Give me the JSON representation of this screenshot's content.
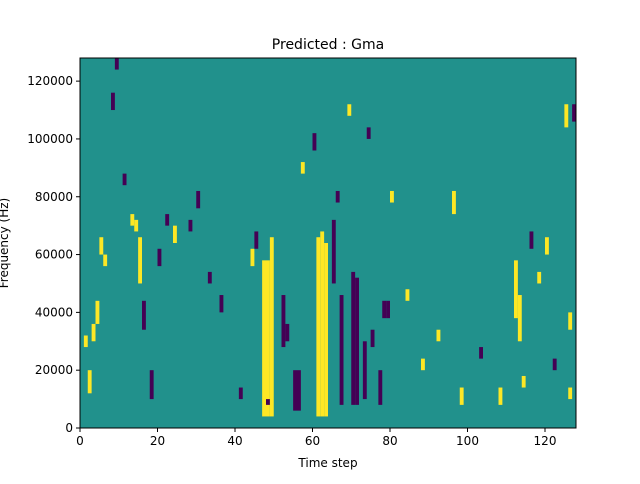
{
  "chart_data": {
    "type": "heatmap",
    "title": "Predicted : Gma",
    "xlabel": "Time step",
    "ylabel": "Frequency (Hz)",
    "xlim": [
      0,
      128
    ],
    "ylim": [
      0,
      128000
    ],
    "x_ticks": [
      0,
      20,
      40,
      60,
      80,
      100,
      120
    ],
    "y_ticks": [
      0,
      20000,
      40000,
      60000,
      80000,
      100000,
      120000
    ],
    "grid": false,
    "legend": "none",
    "colors": {
      "background": "#21918c",
      "high": "#fde725",
      "low": "#440154"
    },
    "value_levels": {
      "background": 0,
      "high": 1,
      "low": -1
    },
    "cells": [
      {
        "t": 47,
        "f0": 4000,
        "f1": 58000,
        "v": 1
      },
      {
        "t": 48,
        "f0": 4000,
        "f1": 58000,
        "v": 1
      },
      {
        "t": 49,
        "f0": 4000,
        "f1": 66000,
        "v": 1
      },
      {
        "t": 48,
        "f0": 8000,
        "f1": 10000,
        "v": -1
      },
      {
        "t": 61,
        "f0": 4000,
        "f1": 66000,
        "v": 1
      },
      {
        "t": 62,
        "f0": 4000,
        "f1": 68000,
        "v": 1
      },
      {
        "t": 63,
        "f0": 4000,
        "f1": 64000,
        "v": 1
      },
      {
        "t": 55,
        "f0": 6000,
        "f1": 20000,
        "v": -1
      },
      {
        "t": 56,
        "f0": 6000,
        "f1": 20000,
        "v": -1
      },
      {
        "t": 52,
        "f0": 28000,
        "f1": 46000,
        "v": -1
      },
      {
        "t": 53,
        "f0": 30000,
        "f1": 36000,
        "v": -1
      },
      {
        "t": 70,
        "f0": 8000,
        "f1": 54000,
        "v": -1
      },
      {
        "t": 71,
        "f0": 8000,
        "f1": 52000,
        "v": -1
      },
      {
        "t": 67,
        "f0": 8000,
        "f1": 46000,
        "v": -1
      },
      {
        "t": 65,
        "f0": 50000,
        "f1": 72000,
        "v": -1
      },
      {
        "t": 77,
        "f0": 8000,
        "f1": 20000,
        "v": -1
      },
      {
        "t": 78,
        "f0": 38000,
        "f1": 44000,
        "v": -1
      },
      {
        "t": 79,
        "f0": 38000,
        "f1": 44000,
        "v": -1
      },
      {
        "t": 75,
        "f0": 28000,
        "f1": 34000,
        "v": -1
      },
      {
        "t": 73,
        "f0": 10000,
        "f1": 30000,
        "v": -1
      },
      {
        "t": 1,
        "f0": 28000,
        "f1": 32000,
        "v": 1
      },
      {
        "t": 2,
        "f0": 12000,
        "f1": 20000,
        "v": 1
      },
      {
        "t": 3,
        "f0": 30000,
        "f1": 36000,
        "v": 1
      },
      {
        "t": 5,
        "f0": 60000,
        "f1": 66000,
        "v": 1
      },
      {
        "t": 6,
        "f0": 56000,
        "f1": 60000,
        "v": 1
      },
      {
        "t": 4,
        "f0": 36000,
        "f1": 44000,
        "v": 1
      },
      {
        "t": 8,
        "f0": 110000,
        "f1": 116000,
        "v": -1
      },
      {
        "t": 9,
        "f0": 124000,
        "f1": 128000,
        "v": -1
      },
      {
        "t": 11,
        "f0": 84000,
        "f1": 88000,
        "v": -1
      },
      {
        "t": 13,
        "f0": 70000,
        "f1": 74000,
        "v": 1
      },
      {
        "t": 14,
        "f0": 68000,
        "f1": 72000,
        "v": 1
      },
      {
        "t": 15,
        "f0": 50000,
        "f1": 66000,
        "v": 1
      },
      {
        "t": 16,
        "f0": 34000,
        "f1": 44000,
        "v": -1
      },
      {
        "t": 18,
        "f0": 10000,
        "f1": 20000,
        "v": -1
      },
      {
        "t": 20,
        "f0": 56000,
        "f1": 62000,
        "v": -1
      },
      {
        "t": 22,
        "f0": 70000,
        "f1": 74000,
        "v": -1
      },
      {
        "t": 24,
        "f0": 64000,
        "f1": 70000,
        "v": 1
      },
      {
        "t": 28,
        "f0": 68000,
        "f1": 72000,
        "v": -1
      },
      {
        "t": 30,
        "f0": 76000,
        "f1": 82000,
        "v": -1
      },
      {
        "t": 33,
        "f0": 50000,
        "f1": 54000,
        "v": -1
      },
      {
        "t": 36,
        "f0": 40000,
        "f1": 46000,
        "v": -1
      },
      {
        "t": 41,
        "f0": 10000,
        "f1": 14000,
        "v": -1
      },
      {
        "t": 44,
        "f0": 56000,
        "f1": 62000,
        "v": 1
      },
      {
        "t": 45,
        "f0": 62000,
        "f1": 68000,
        "v": -1
      },
      {
        "t": 57,
        "f0": 88000,
        "f1": 92000,
        "v": 1
      },
      {
        "t": 60,
        "f0": 96000,
        "f1": 102000,
        "v": -1
      },
      {
        "t": 66,
        "f0": 78000,
        "f1": 82000,
        "v": -1
      },
      {
        "t": 69,
        "f0": 108000,
        "f1": 112000,
        "v": 1
      },
      {
        "t": 74,
        "f0": 100000,
        "f1": 104000,
        "v": -1
      },
      {
        "t": 80,
        "f0": 78000,
        "f1": 82000,
        "v": 1
      },
      {
        "t": 84,
        "f0": 44000,
        "f1": 48000,
        "v": 1
      },
      {
        "t": 88,
        "f0": 20000,
        "f1": 24000,
        "v": 1
      },
      {
        "t": 92,
        "f0": 30000,
        "f1": 34000,
        "v": 1
      },
      {
        "t": 96,
        "f0": 74000,
        "f1": 82000,
        "v": 1
      },
      {
        "t": 98,
        "f0": 8000,
        "f1": 14000,
        "v": 1
      },
      {
        "t": 103,
        "f0": 24000,
        "f1": 28000,
        "v": -1
      },
      {
        "t": 108,
        "f0": 8000,
        "f1": 14000,
        "v": 1
      },
      {
        "t": 112,
        "f0": 38000,
        "f1": 58000,
        "v": 1
      },
      {
        "t": 113,
        "f0": 30000,
        "f1": 46000,
        "v": 1
      },
      {
        "t": 114,
        "f0": 14000,
        "f1": 18000,
        "v": 1
      },
      {
        "t": 116,
        "f0": 62000,
        "f1": 68000,
        "v": -1
      },
      {
        "t": 118,
        "f0": 50000,
        "f1": 54000,
        "v": 1
      },
      {
        "t": 120,
        "f0": 60000,
        "f1": 66000,
        "v": 1
      },
      {
        "t": 122,
        "f0": 20000,
        "f1": 24000,
        "v": -1
      },
      {
        "t": 125,
        "f0": 104000,
        "f1": 112000,
        "v": 1
      },
      {
        "t": 126,
        "f0": 34000,
        "f1": 40000,
        "v": 1
      },
      {
        "t": 127,
        "f0": 106000,
        "f1": 112000,
        "v": -1
      },
      {
        "t": 126,
        "f0": 10000,
        "f1": 14000,
        "v": 1
      }
    ]
  }
}
